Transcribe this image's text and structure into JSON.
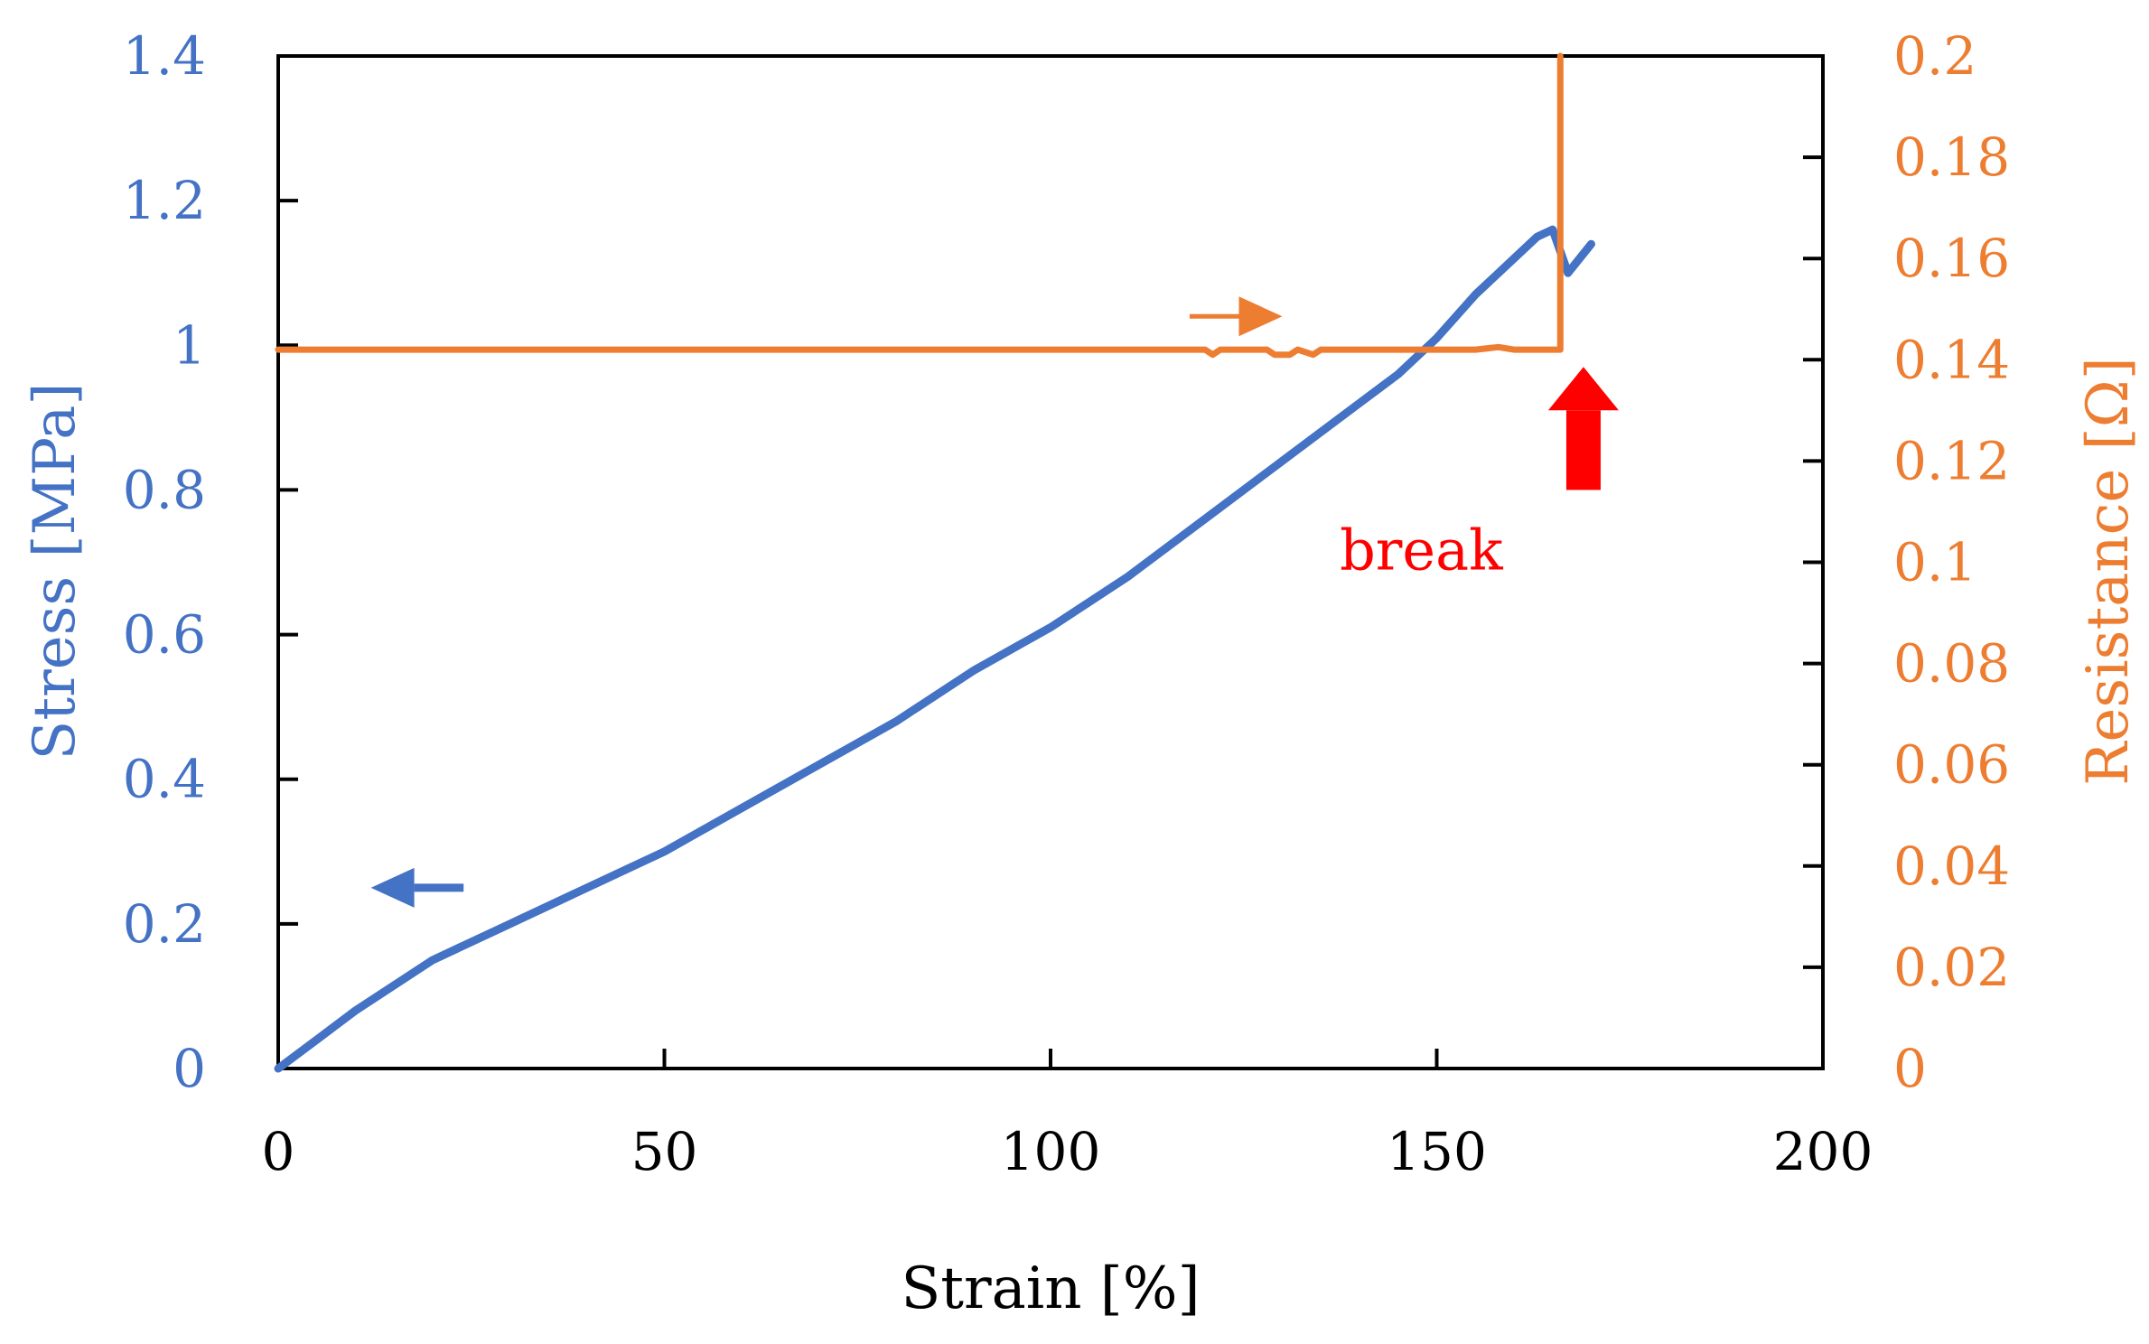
{
  "chart_data": {
    "type": "line",
    "title": "",
    "xlabel": "Strain [%]",
    "ylabel_left": "Stress [MPa]",
    "ylabel_right": "Resistance [Ω]",
    "xlim": [
      0,
      200
    ],
    "ylim_left": [
      0,
      1.4
    ],
    "ylim_right": [
      0,
      0.2
    ],
    "x_ticks": [
      "0",
      "50",
      "100",
      "150",
      "200"
    ],
    "x_tick_values": [
      0,
      50,
      100,
      150,
      200
    ],
    "y_left_ticks": [
      "0",
      "0.2",
      "0.4",
      "0.6",
      "0.8",
      "1",
      "1.2",
      "1.4"
    ],
    "y_left_tick_values": [
      0,
      0.2,
      0.4,
      0.6,
      0.8,
      1.0,
      1.2,
      1.4
    ],
    "y_right_ticks": [
      "0",
      "0.02",
      "0.04",
      "0.06",
      "0.08",
      "0.1",
      "0.12",
      "0.14",
      "0.16",
      "0.18",
      "0.2"
    ],
    "y_right_tick_values": [
      0,
      0.02,
      0.04,
      0.06,
      0.08,
      0.1,
      0.12,
      0.14,
      0.16,
      0.18,
      0.2
    ],
    "grid": false,
    "series": [
      {
        "name": "Stress",
        "axis": "left",
        "color": "#4472C4",
        "x": [
          0,
          5,
          10,
          20,
          30,
          40,
          50,
          60,
          70,
          80,
          90,
          100,
          110,
          120,
          130,
          140,
          145,
          150,
          155,
          160,
          163,
          165,
          167,
          170
        ],
        "y": [
          0,
          0.04,
          0.08,
          0.15,
          0.2,
          0.25,
          0.3,
          0.36,
          0.42,
          0.48,
          0.55,
          0.61,
          0.68,
          0.76,
          0.84,
          0.92,
          0.96,
          1.01,
          1.07,
          1.12,
          1.15,
          1.16,
          1.1,
          1.14
        ]
      },
      {
        "name": "Resistance",
        "axis": "right",
        "color": "#ED7D31",
        "x": [
          0,
          120,
          121,
          122,
          128,
          129,
          131,
          132,
          134,
          135,
          155,
          158,
          160,
          166,
          166
        ],
        "y": [
          0.142,
          0.142,
          0.141,
          0.142,
          0.142,
          0.141,
          0.141,
          0.142,
          0.141,
          0.142,
          0.142,
          0.1425,
          0.142,
          0.142,
          0.2
        ]
      }
    ],
    "annotations": [
      {
        "text": "break",
        "color": "#FF0000",
        "x": 148,
        "y_left": 0.69
      }
    ],
    "arrow_markers": [
      {
        "name": "stress-axis-arrow",
        "direction": "left",
        "color": "#4472C4",
        "x_from": 24,
        "x_to": 12,
        "y_left": 0.25
      },
      {
        "name": "resistance-axis-arrow",
        "direction": "right",
        "color": "#ED7D31",
        "x_from": 118,
        "x_to": 130,
        "y_left": 1.04
      },
      {
        "name": "break-arrow",
        "direction": "up",
        "color": "#FF0000",
        "x": 169,
        "y_left_from": 0.8,
        "y_left_to": 0.97
      }
    ],
    "colors": {
      "stress": "#4472C4",
      "resistance": "#ED7D31",
      "break": "#FF0000",
      "axis": "#000000"
    }
  }
}
